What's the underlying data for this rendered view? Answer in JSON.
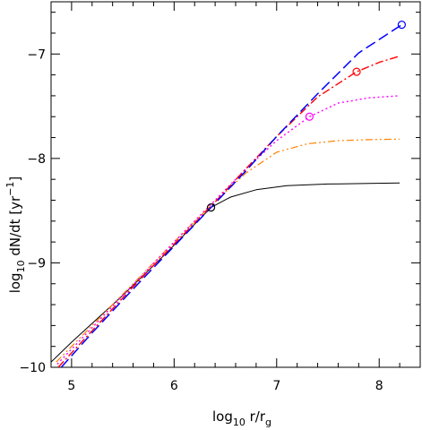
{
  "chart_data": {
    "type": "line",
    "xlabel": {
      "base": "log",
      "base_sub": "10",
      "main": " r/r",
      "main_sub": "g"
    },
    "ylabel": {
      "base": "log",
      "base_sub": "10",
      "main": " dN/dt [yr",
      "main_sup": "−1",
      "end": "]"
    },
    "xlim": [
      4.8,
      8.4
    ],
    "ylim": [
      -10,
      -6.5
    ],
    "x_ticks": [
      5,
      6,
      7,
      8
    ],
    "x_tick_labels": [
      "5",
      "6",
      "7",
      "8"
    ],
    "y_ticks": [
      -10,
      -9,
      -8,
      -7
    ],
    "y_tick_labels": [
      "−10",
      "−9",
      "−8",
      "−7"
    ],
    "grid": false,
    "series": [
      {
        "color": "#000000",
        "dash": "",
        "width": 1.0,
        "x": [
          4.8,
          5.0,
          5.5,
          5.9,
          6.2,
          6.36,
          6.55,
          6.8,
          7.1,
          7.5,
          7.9,
          8.2
        ],
        "y": [
          -9.95,
          -9.76,
          -9.31,
          -8.93,
          -8.63,
          -8.47,
          -8.37,
          -8.3,
          -8.26,
          -8.245,
          -8.24,
          -8.235
        ],
        "marker": {
          "x": 6.36,
          "y": -8.47,
          "color": "#000000"
        }
      },
      {
        "color": "#ff8000",
        "dash": "8,3,2,3,2,3",
        "width": 1.2,
        "x": [
          4.85,
          5.2,
          5.6,
          6.0,
          6.36,
          6.7,
          7.0,
          7.3,
          7.6,
          7.9,
          8.2
        ],
        "y": [
          -9.95,
          -9.6,
          -9.2,
          -8.8,
          -8.45,
          -8.14,
          -7.94,
          -7.86,
          -7.83,
          -7.82,
          -7.815
        ],
        "marker": null
      },
      {
        "color": "#ff00ff",
        "dash": "2,3",
        "width": 1.4,
        "x": [
          4.86,
          5.2,
          5.6,
          6.0,
          6.36,
          6.7,
          7.0,
          7.32,
          7.6,
          7.9,
          8.2
        ],
        "y": [
          -9.97,
          -9.62,
          -9.21,
          -8.8,
          -8.44,
          -8.1,
          -7.83,
          -7.6,
          -7.47,
          -7.42,
          -7.4
        ],
        "marker": {
          "x": 7.32,
          "y": -7.6,
          "color": "#ff00ff"
        }
      },
      {
        "color": "#ff0000",
        "dash": "9,3,2,3",
        "width": 1.4,
        "x": [
          4.87,
          5.2,
          5.6,
          6.0,
          6.36,
          6.7,
          7.0,
          7.4,
          7.78,
          8.0,
          8.2
        ],
        "y": [
          -10.0,
          -9.65,
          -9.23,
          -8.82,
          -8.46,
          -8.1,
          -7.79,
          -7.41,
          -7.17,
          -7.08,
          -7.02
        ],
        "marker": {
          "x": 7.78,
          "y": -7.17,
          "color": "#ff0000"
        }
      },
      {
        "color": "#0000ff",
        "dash": "12,5",
        "width": 1.5,
        "x": [
          4.9,
          5.2,
          5.6,
          6.0,
          6.36,
          6.7,
          7.0,
          7.4,
          7.8,
          8.22
        ],
        "y": [
          -10.0,
          -9.67,
          -9.25,
          -8.84,
          -8.47,
          -8.12,
          -7.79,
          -7.38,
          -6.99,
          -6.72
        ],
        "marker": {
          "x": 8.22,
          "y": -6.72,
          "color": "#0000ff"
        }
      }
    ]
  }
}
